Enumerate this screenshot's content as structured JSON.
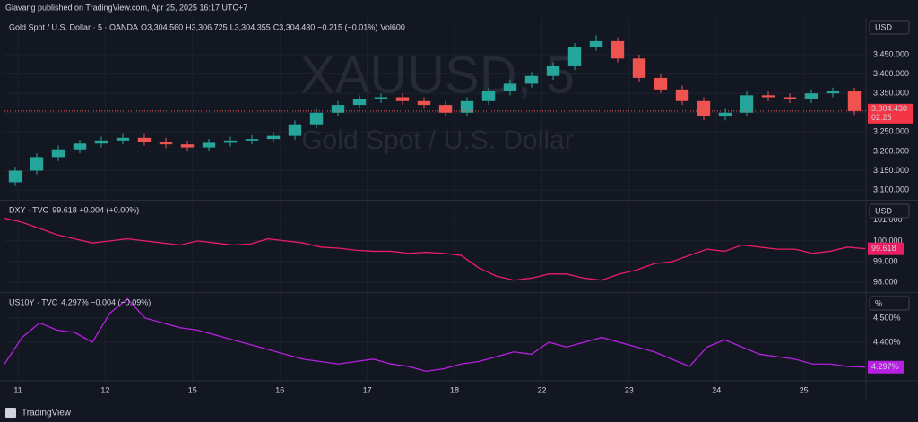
{
  "header": {
    "published": "Glavang published on TradingView.com, Apr 25, 2025 16:17 UTC+7"
  },
  "footer": {
    "brand": "TradingView"
  },
  "x_axis": {
    "categories": [
      "11",
      "12",
      "15",
      "16",
      "17",
      "18",
      "22",
      "23",
      "24",
      "25"
    ]
  },
  "chart_data": [
    {
      "type": "candlestick",
      "title": "Gold Spot / U.S. Dollar · 5 · OANDA",
      "ohlc": [
        {
          "label": "O",
          "value": "3,304.560"
        },
        {
          "label": "H",
          "value": "3,306.725"
        },
        {
          "label": "L",
          "value": "3,304.355"
        },
        {
          "label": "C",
          "value": "3,304.430"
        }
      ],
      "change": "−0.215 (−0.01%)",
      "volume": {
        "label": "Vol",
        "value": "600"
      },
      "watermark": "XAUUSD, 5",
      "watermark_subtitle": "Gold Spot / U.S. Dollar",
      "currency": "USD",
      "price_label": "3,304.430",
      "countdown": "02:25",
      "last_price": 3304.43,
      "up_color": "#26a69a",
      "down_color": "#ef5350",
      "open": [
        3120,
        3150,
        3185,
        3205,
        3220,
        3228,
        3235,
        3225,
        3218,
        3210,
        3222,
        3228,
        3232,
        3240,
        3270,
        3300,
        3320,
        3335,
        3340,
        3330,
        3320,
        3300,
        3330,
        3355,
        3375,
        3395,
        3420,
        3470,
        3485,
        3440,
        3390,
        3360,
        3330,
        3290,
        3300,
        3345,
        3340,
        3335,
        3350,
        3355
      ],
      "high": [
        3160,
        3195,
        3215,
        3230,
        3238,
        3245,
        3245,
        3235,
        3228,
        3232,
        3238,
        3242,
        3250,
        3280,
        3310,
        3330,
        3345,
        3350,
        3350,
        3340,
        3330,
        3340,
        3365,
        3385,
        3405,
        3430,
        3480,
        3500,
        3495,
        3450,
        3400,
        3370,
        3340,
        3310,
        3355,
        3355,
        3350,
        3360,
        3365,
        3365
      ],
      "low": [
        3110,
        3140,
        3175,
        3195,
        3210,
        3218,
        3215,
        3208,
        3200,
        3200,
        3212,
        3218,
        3222,
        3230,
        3260,
        3290,
        3310,
        3325,
        3320,
        3310,
        3290,
        3290,
        3320,
        3345,
        3365,
        3385,
        3410,
        3460,
        3430,
        3380,
        3350,
        3320,
        3280,
        3280,
        3290,
        3330,
        3325,
        3325,
        3340,
        3294
      ],
      "close": [
        3150,
        3185,
        3205,
        3220,
        3228,
        3235,
        3225,
        3218,
        3210,
        3222,
        3228,
        3232,
        3240,
        3270,
        3300,
        3320,
        3335,
        3340,
        3330,
        3320,
        3300,
        3330,
        3355,
        3375,
        3395,
        3420,
        3470,
        3485,
        3440,
        3390,
        3360,
        3330,
        3290,
        3300,
        3345,
        3340,
        3335,
        3350,
        3355,
        3304.43
      ],
      "ylim": [
        3077,
        3545
      ],
      "yticks": [
        {
          "value": 3100,
          "label": "3,100.000"
        },
        {
          "value": 3150,
          "label": "3,150.000"
        },
        {
          "value": 3200,
          "label": "3,200.000"
        },
        {
          "value": 3250,
          "label": "3,250.000"
        },
        {
          "value": 3300,
          "label": "3,300.000"
        },
        {
          "value": 3350,
          "label": "3,350.000"
        },
        {
          "value": 3400,
          "label": "3,400.000"
        },
        {
          "value": 3450,
          "label": "3,450.000"
        }
      ]
    },
    {
      "type": "line",
      "title": "DXY · TVC",
      "change": "99.618 +0.004 (+0.00%)",
      "currency": "USD",
      "price_label": "99.618",
      "color": "#e91e63",
      "values": [
        101.1,
        100.9,
        100.6,
        100.3,
        100.1,
        99.9,
        100.0,
        100.1,
        100.0,
        99.9,
        99.8,
        100.0,
        99.9,
        99.8,
        99.85,
        100.1,
        100.0,
        99.9,
        99.7,
        99.65,
        99.55,
        99.5,
        99.5,
        99.4,
        99.45,
        99.4,
        99.3,
        98.7,
        98.3,
        98.1,
        98.2,
        98.4,
        98.4,
        98.2,
        98.1,
        98.4,
        98.6,
        98.9,
        99.0,
        99.3,
        99.6,
        99.5,
        99.8,
        99.7,
        99.6,
        99.6,
        99.4,
        99.5,
        99.7,
        99.618
      ],
      "ylim": [
        97.57,
        101.9
      ],
      "yticks": [
        {
          "value": 98,
          "label": "98.000"
        },
        {
          "value": 99,
          "label": "99.000"
        },
        {
          "value": 100,
          "label": "100.000"
        },
        {
          "value": 101,
          "label": "101.000"
        }
      ]
    },
    {
      "type": "line",
      "title": "US10Y · TVC",
      "change": "4.297% −0.004 (−0.09%)",
      "currency": "%",
      "price_label": "4.297%",
      "color": "#b620e0",
      "values": [
        4.31,
        4.42,
        4.48,
        4.45,
        4.44,
        4.4,
        4.52,
        4.58,
        4.5,
        4.48,
        4.46,
        4.45,
        4.43,
        4.41,
        4.39,
        4.37,
        4.35,
        4.33,
        4.32,
        4.31,
        4.32,
        4.33,
        4.31,
        4.3,
        4.28,
        4.29,
        4.31,
        4.32,
        4.34,
        4.36,
        4.35,
        4.4,
        4.38,
        4.4,
        4.42,
        4.4,
        4.38,
        4.36,
        4.33,
        4.3,
        4.38,
        4.41,
        4.38,
        4.35,
        4.34,
        4.33,
        4.31,
        4.31,
        4.3,
        4.297
      ],
      "ylim": [
        4.259,
        4.6
      ],
      "yticks": [
        {
          "value": 4.4,
          "label": "4.400%"
        },
        {
          "value": 4.5,
          "label": "4.500%"
        }
      ]
    }
  ]
}
